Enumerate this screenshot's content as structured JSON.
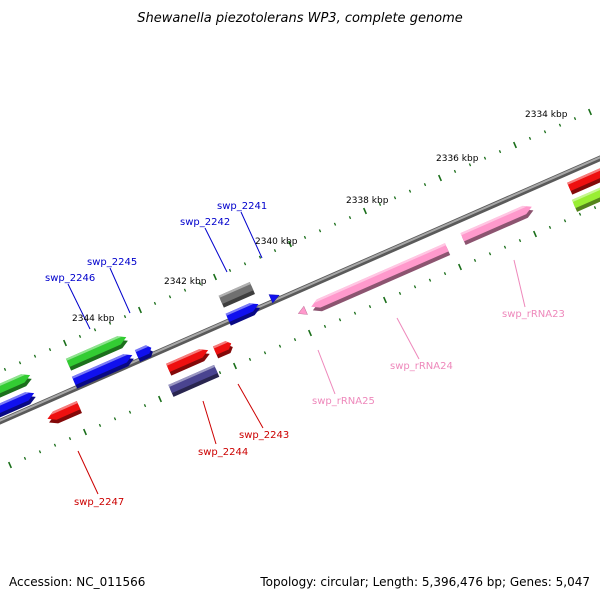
{
  "title": "Shewanella piezotolerans WP3, complete genome",
  "footer": {
    "accession": "Accession: NC_011566",
    "summary": "Topology: circular; Length: 5,396,476 bp; Genes: 5,047"
  },
  "ticks": [
    {
      "label": "2334 kbp"
    },
    {
      "label": "2336 kbp"
    },
    {
      "label": "2338 kbp"
    },
    {
      "label": "2340 kbp"
    },
    {
      "label": "2342 kbp"
    },
    {
      "label": "2344 kbp"
    }
  ],
  "colors": {
    "backbone": "#8a8a8a",
    "tick": "#1a6e1a",
    "cds_green": "#33cc33",
    "cds_blue": "#1010ee",
    "cds_red": "#ee1010",
    "cds_gray": "#707070",
    "cds_navy": "#4a4490",
    "cds_lime": "#99ee33",
    "rrna_pink": "#ff99cc",
    "label_blue": "#0000cc",
    "label_red": "#cc0000",
    "label_pink": "#ee88bb"
  },
  "labels": [
    {
      "text": "swp_2241",
      "color": "label_blue"
    },
    {
      "text": "swp_2242",
      "color": "label_blue"
    },
    {
      "text": "swp_2245",
      "color": "label_blue"
    },
    {
      "text": "swp_2246",
      "color": "label_blue"
    },
    {
      "text": "swp_2243",
      "color": "label_red"
    },
    {
      "text": "swp_2244",
      "color": "label_red"
    },
    {
      "text": "swp_2247",
      "color": "label_red"
    },
    {
      "text": "swp_rRNA23",
      "color": "label_pink"
    },
    {
      "text": "swp_rRNA24",
      "color": "label_pink"
    },
    {
      "text": "swp_rRNA25",
      "color": "label_pink"
    }
  ]
}
